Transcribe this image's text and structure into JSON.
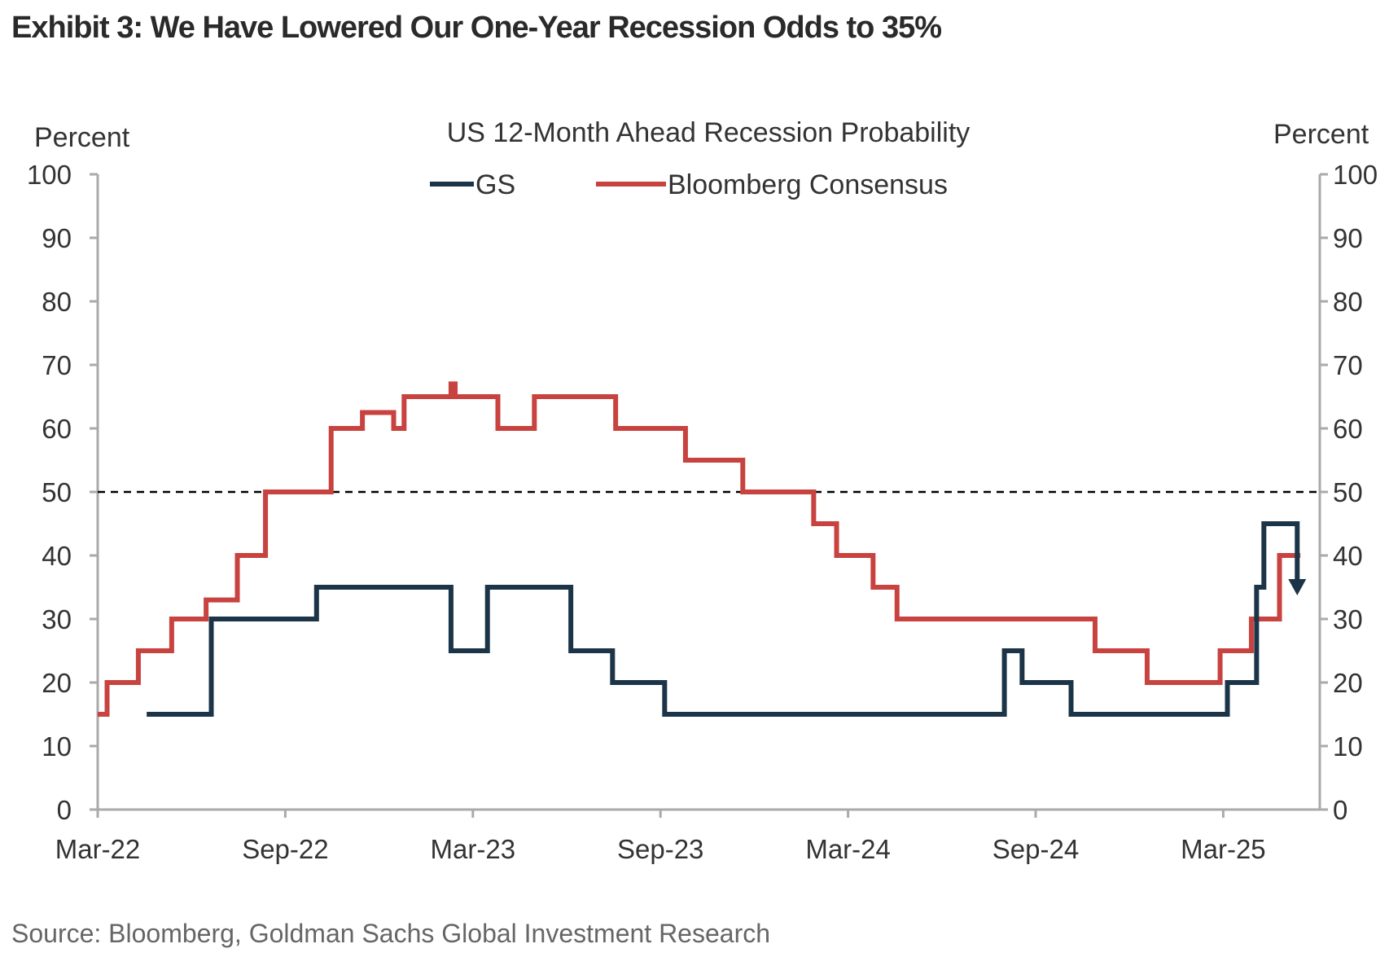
{
  "title": "Exhibit 3: We Have Lowered Our One-Year Recession Odds to 35%",
  "source": "Source: Bloomberg, Goldman Sachs Global Investment Research",
  "chart_data": {
    "type": "line",
    "title": "US 12-Month  Ahead  Recession Probability",
    "ylabel_left": "Percent",
    "ylabel_right": "Percent",
    "ylim": [
      0,
      100
    ],
    "yticks": [
      0,
      10,
      20,
      30,
      40,
      50,
      60,
      70,
      80,
      90,
      100
    ],
    "xticks": [
      "Mar-22",
      "Sep-22",
      "Mar-23",
      "Sep-23",
      "Mar-24",
      "Sep-24",
      "Mar-25"
    ],
    "xlim": [
      "2022-03-01",
      "2025-06-01"
    ],
    "reference_line": {
      "y": 50,
      "style": "dashed",
      "color": "#000000"
    },
    "legend_position": "top-center",
    "step": true,
    "series": [
      {
        "name": "GS",
        "color": "#1b3447",
        "end_marker": "arrow-down",
        "points": [
          [
            "2022-04-18",
            15
          ],
          [
            "2022-06-20",
            30
          ],
          [
            "2022-10-01",
            35
          ],
          [
            "2023-02-10",
            25
          ],
          [
            "2023-03-15",
            35
          ],
          [
            "2023-06-05",
            25
          ],
          [
            "2023-07-15",
            20
          ],
          [
            "2023-09-05",
            15
          ],
          [
            "2024-08-01",
            25
          ],
          [
            "2024-08-18",
            20
          ],
          [
            "2024-10-05",
            15
          ],
          [
            "2025-03-05",
            20
          ],
          [
            "2025-04-03",
            35
          ],
          [
            "2025-04-10",
            45
          ],
          [
            "2025-05-12",
            35
          ]
        ]
      },
      {
        "name": "Bloomberg Consensus",
        "color": "#c8423f",
        "points": [
          [
            "2022-03-01",
            15
          ],
          [
            "2022-03-10",
            20
          ],
          [
            "2022-04-10",
            25
          ],
          [
            "2022-05-12",
            30
          ],
          [
            "2022-06-15",
            33
          ],
          [
            "2022-07-15",
            40
          ],
          [
            "2022-08-12",
            50
          ],
          [
            "2022-10-15",
            60
          ],
          [
            "2022-11-15",
            62.5
          ],
          [
            "2022-12-15",
            60
          ],
          [
            "2022-12-25",
            65
          ],
          [
            "2023-02-10",
            67
          ],
          [
            "2023-02-14",
            65
          ],
          [
            "2023-03-25",
            60
          ],
          [
            "2023-04-30",
            65
          ],
          [
            "2023-07-18",
            60
          ],
          [
            "2023-09-25",
            55
          ],
          [
            "2023-11-20",
            50
          ],
          [
            "2024-01-28",
            45
          ],
          [
            "2024-02-20",
            40
          ],
          [
            "2024-03-25",
            35
          ],
          [
            "2024-04-18",
            30
          ],
          [
            "2024-10-28",
            25
          ],
          [
            "2024-12-18",
            20
          ],
          [
            "2025-02-28",
            25
          ],
          [
            "2025-03-28",
            30
          ],
          [
            "2025-04-25",
            40
          ],
          [
            "2025-05-15",
            40
          ]
        ]
      }
    ]
  }
}
